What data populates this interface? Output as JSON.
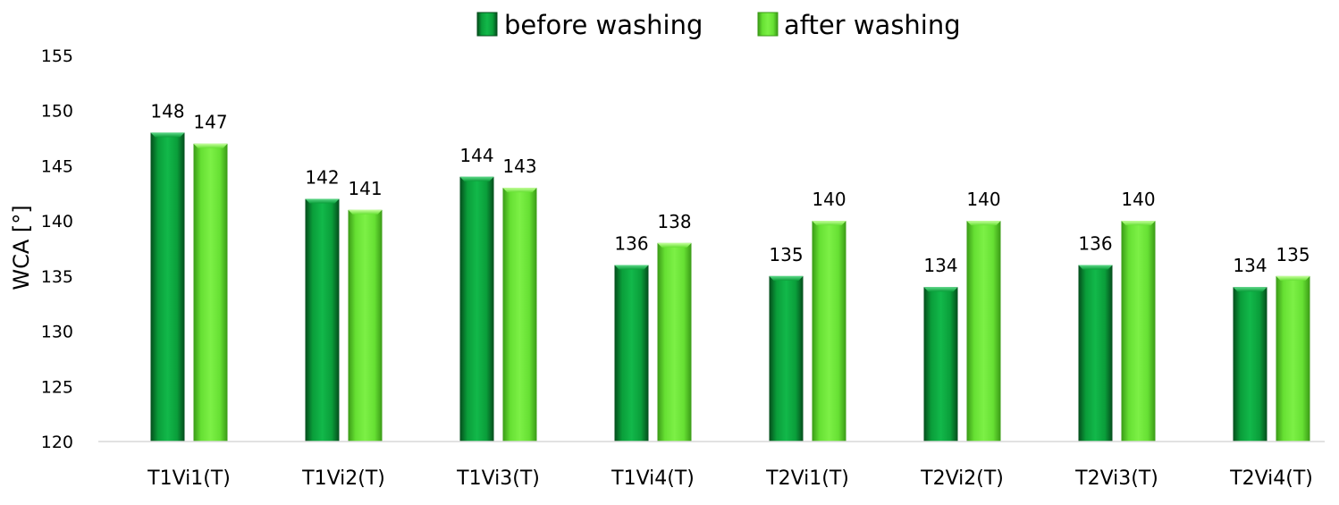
{
  "chart_data": {
    "type": "bar",
    "title": "",
    "xlabel": "",
    "ylabel": "WCA [°]",
    "ylim": [
      120,
      155
    ],
    "yticks": [
      120,
      125,
      130,
      135,
      140,
      145,
      150,
      155
    ],
    "grid": false,
    "legend_position": "top-center",
    "categories": [
      "T1Vi1(T)",
      "T1Vi2(T)",
      "T1Vi3(T)",
      "T1Vi4(T)",
      "T2Vi1(T)",
      "T2Vi2(T)",
      "T2Vi3(T)",
      "T2Vi4(T)"
    ],
    "series": [
      {
        "name": "before washing",
        "color": "#0a9e3a",
        "values": [
          148,
          142,
          144,
          136,
          135,
          134,
          136,
          134
        ]
      },
      {
        "name": "after washing",
        "color": "#66e033",
        "values": [
          147,
          141,
          143,
          138,
          140,
          140,
          140,
          135
        ]
      }
    ]
  }
}
